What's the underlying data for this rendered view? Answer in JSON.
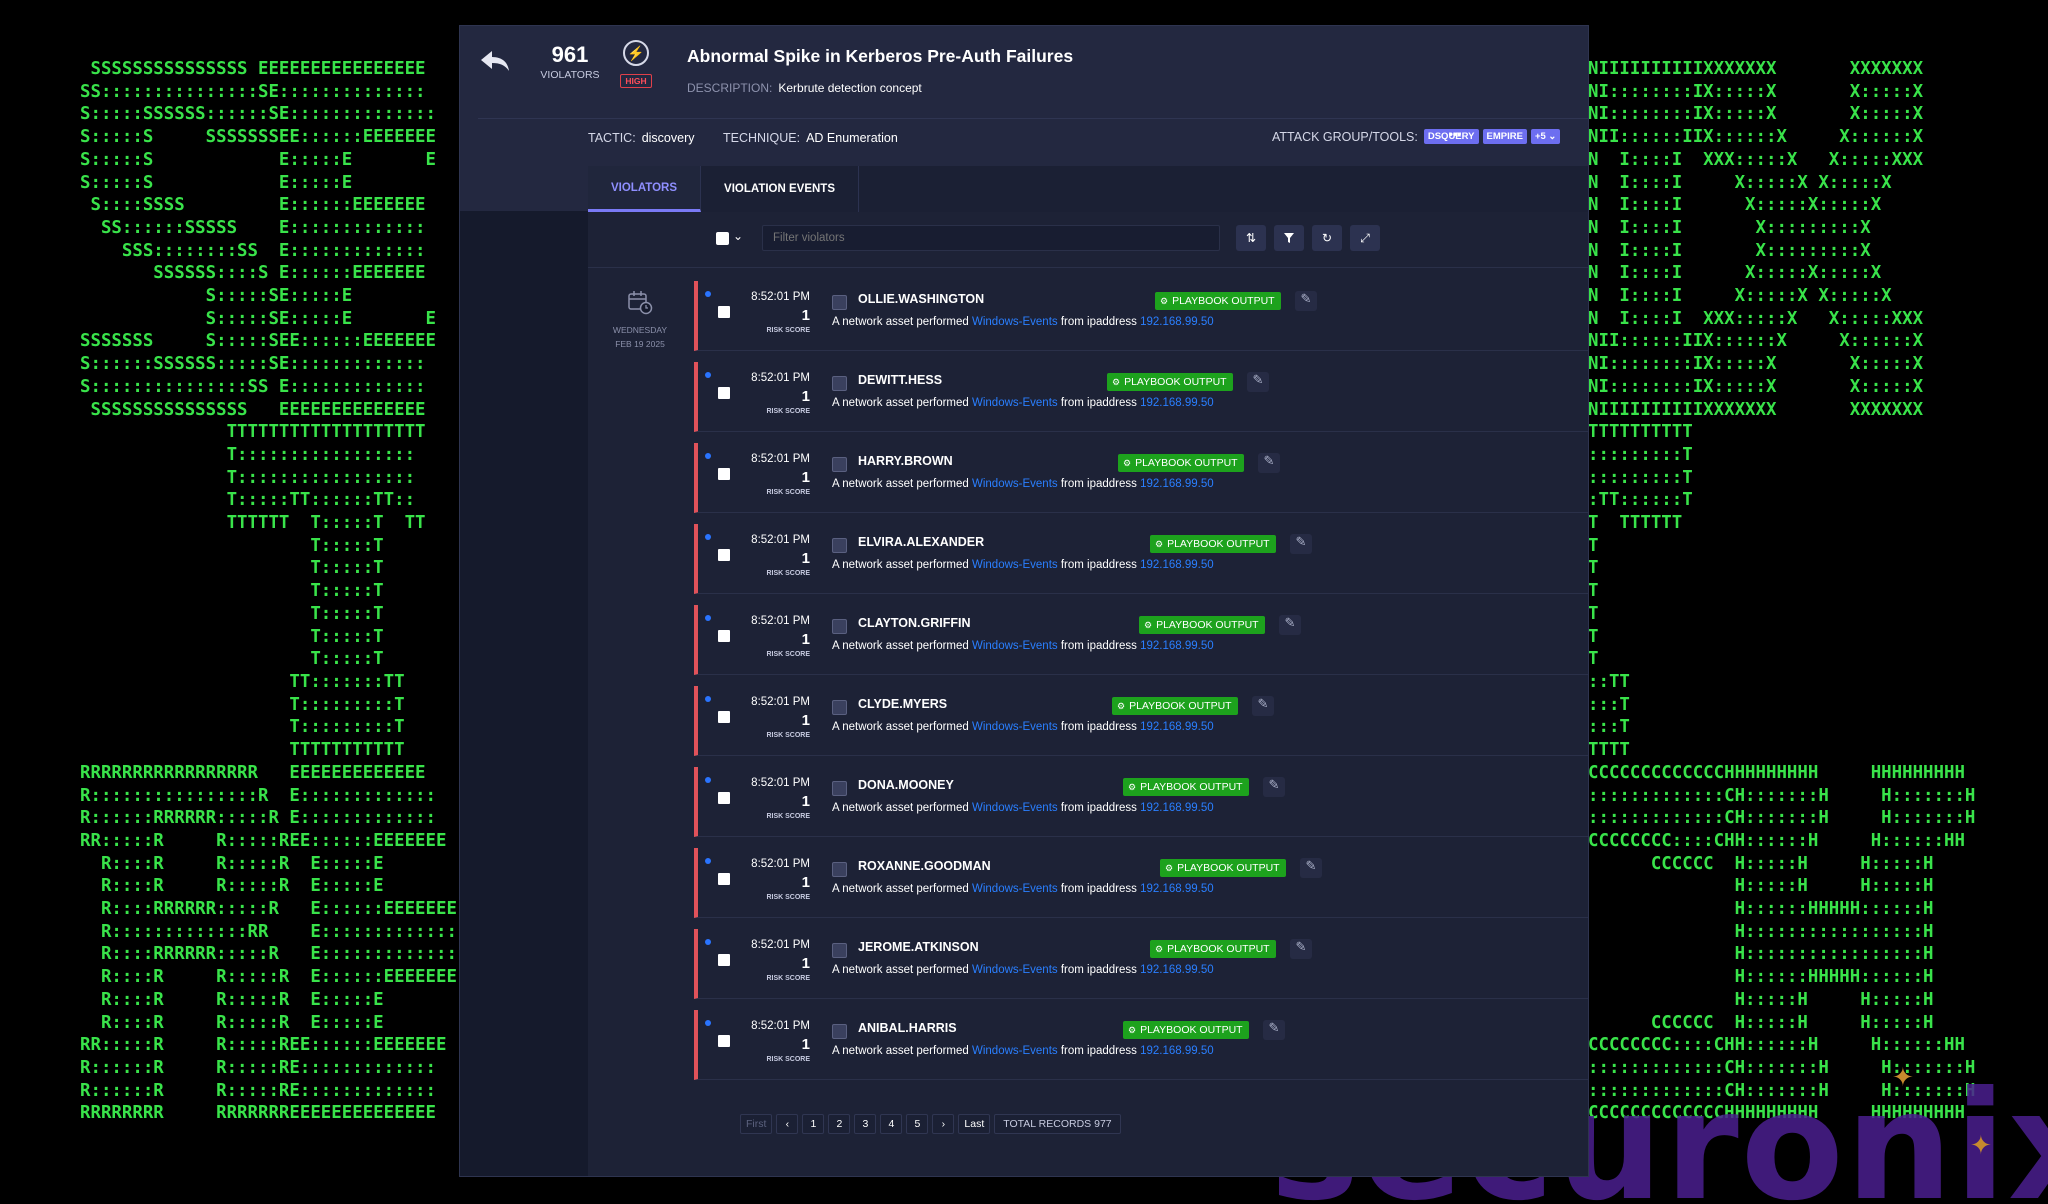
{
  "background": {
    "ascii_left": " SSSSSSSSSSSSSSS EEEEEEEEEEEEEEEE\nSS:::::::::::::::SE::::::::::::::\nS:::::SSSSSS::::::SE::::::::::::::\nS:::::S     SSSSSSSEE::::::EEEEEEE\nS:::::S            E:::::E       E\nS:::::S            E:::::E\n S::::SSSS         E::::::EEEEEEE\n  SS::::::SSSSS    E:::::::::::::\n    SSS::::::::SS  E:::::::::::::\n       SSSSSS::::S E::::::EEEEEEE\n            S:::::SE:::::E\n            S:::::SE:::::E       E\nSSSSSSS     S:::::SEE::::::EEEEEEE\nS::::::SSSSSS:::::SE:::::::::::::\nS:::::::::::::::SS E:::::::::::::\n SSSSSSSSSSSSSSS   EEEEEEEEEEEEEE\n              TTTTTTTTTTTTTTTTTTT\n              T:::::::::::::::::\n              T:::::::::::::::::\n              T:::::TT::::::TT::\n              TTTTTT  T:::::T  TT\n                      T:::::T\n                      T:::::T\n                      T:::::T\n                      T:::::T\n                      T:::::T\n                      T:::::T\n                    TT:::::::TT\n                    T:::::::::T\n                    T:::::::::T\n                    TTTTTTTTTTT\nRRRRRRRRRRRRRRRRR   EEEEEEEEEEEEE\nR::::::::::::::::R  E:::::::::::::\nR::::::RRRRRR:::::R E:::::::::::::\nRR:::::R     R:::::REE::::::EEEEEEE\n  R::::R     R:::::R  E:::::E\n  R::::R     R:::::R  E:::::E\n  R::::RRRRRR:::::R   E::::::EEEEEEE\n  R:::::::::::::RR    E:::::::::::::\n  R::::RRRRRR:::::R   E:::::::::::::\n  R::::R     R:::::R  E::::::EEEEEEE\n  R::::R     R:::::R  E:::::E\n  R::::R     R:::::R  E:::::E\nRR:::::R     R:::::REE::::::EEEEEEE\nR::::::R     R:::::RE:::::::::::::\nR::::::R     R:::::RE:::::::::::::\nRRRRRRRR     RRRRRRREEEEEEEEEEEEEE",
    "ascii_right": "NIIIIIIIIIIXXXXXXX       XXXXXXX\nNI::::::::IX:::::X       X:::::X\nNI::::::::IX:::::X       X:::::X\nNII::::::IIX::::::X     X::::::X\nN  I::::I  XXX:::::X   X:::::XXX\nN  I::::I     X:::::X X:::::X\nN  I::::I      X:::::X:::::X\nN  I::::I       X:::::::::X\nN  I::::I       X:::::::::X\nN  I::::I      X:::::X:::::X\nN  I::::I     X:::::X X:::::X\nN  I::::I  XXX:::::X   X:::::XXX\nNII::::::IIX::::::X     X::::::X\nNI::::::::IX:::::X       X:::::X\nNI::::::::IX:::::X       X:::::X\nNIIIIIIIIIIXXXXXXX       XXXXXXX\nTTTTTTTTTT\n:::::::::T\n:::::::::T\n:TT::::::T\nT  TTTTTT\nT\nT\nT\nT\nT\nT\n::TT\n:::T\n:::T\nTTTT\nCCCCCCCCCCCCCHHHHHHHHH     HHHHHHHHH\n:::::::::::::CH:::::::H     H:::::::H\n:::::::::::::CH:::::::H     H:::::::H\nCCCCCCCC::::CHH::::::H     H::::::HH\n      CCCCCC  H:::::H     H:::::H\n              H:::::H     H:::::H\n              H::::::HHHHH::::::H\n              H:::::::::::::::::H\n              H:::::::::::::::::H\n              H::::::HHHHH::::::H\n              H:::::H     H:::::H\n      CCCCCC  H:::::H     H:::::H\nCCCCCCCC::::CHH::::::H     H::::::HH\n:::::::::::::CH:::::::H     H:::::::H\n:::::::::::::CH:::::::H     H:::::::H\nCCCCCCCCCCCCCHHHHHHHHH     HHHHHHHHH",
    "brand": "securonix"
  },
  "header": {
    "violators_count": "961",
    "violators_label": "VIOLATORS",
    "severity_label": "HIGH",
    "title": "Abnormal Spike in Kerberos Pre-Auth Failures",
    "description_label": "DESCRIPTION:",
    "description": "Kerbrute detection concept",
    "tactic_label": "TACTIC:",
    "tactic": "discovery",
    "technique_label": "TECHNIQUE:",
    "technique": "AD Enumeration",
    "attack_label": "ATTACK GROUP/TOOLS:",
    "tags": [
      "DSQUERY",
      "EMPIRE",
      "+5 ⌄"
    ],
    "more": "•••"
  },
  "tabs": [
    {
      "label": "VIOLATORS",
      "active": true
    },
    {
      "label": "VIOLATION EVENTS",
      "active": false
    }
  ],
  "toolbar": {
    "filter_placeholder": "Filter violators"
  },
  "date": {
    "weekday": "WEDNESDAY",
    "date": "FEB 19 2025"
  },
  "rows": [
    {
      "time": "8:52:01 PM",
      "score": "1",
      "score_label": "RISK SCORE",
      "user": "OLLIE.WASHINGTON",
      "playbook": "PLAYBOOK OUTPUT",
      "pb_offset": 0.56,
      "desc_a": "A network asset performed",
      "link": "Windows-Events",
      "desc_b": "from ipaddress",
      "ip": "192.168.99.50"
    },
    {
      "time": "8:52:01 PM",
      "score": "1",
      "score_label": "RISK SCORE",
      "user": "DEWITT.HESS",
      "playbook": "PLAYBOOK OUTPUT",
      "pb_offset": 0.47,
      "desc_a": "A network asset performed",
      "link": "Windows-Events",
      "desc_b": "from ipaddress",
      "ip": "192.168.99.50"
    },
    {
      "time": "8:52:01 PM",
      "score": "1",
      "score_label": "RISK SCORE",
      "user": "HARRY.BROWN",
      "playbook": "PLAYBOOK OUTPUT",
      "pb_offset": 0.49,
      "desc_a": "A network asset performed",
      "link": "Windows-Events",
      "desc_b": "from ipaddress",
      "ip": "192.168.99.50"
    },
    {
      "time": "8:52:01 PM",
      "score": "1",
      "score_label": "RISK SCORE",
      "user": "ELVIRA.ALEXANDER",
      "playbook": "PLAYBOOK OUTPUT",
      "pb_offset": 0.55,
      "desc_a": "A network asset performed",
      "link": "Windows-Events",
      "desc_b": "from ipaddress",
      "ip": "192.168.99.50"
    },
    {
      "time": "8:52:01 PM",
      "score": "1",
      "score_label": "RISK SCORE",
      "user": "CLAYTON.GRIFFIN",
      "playbook": "PLAYBOOK OUTPUT",
      "pb_offset": 0.53,
      "desc_a": "A network asset performed",
      "link": "Windows-Events",
      "desc_b": "from ipaddress",
      "ip": "192.168.99.50"
    },
    {
      "time": "8:52:01 PM",
      "score": "1",
      "score_label": "RISK SCORE",
      "user": "CLYDE.MYERS",
      "playbook": "PLAYBOOK OUTPUT",
      "pb_offset": 0.48,
      "desc_a": "A network asset performed",
      "link": "Windows-Events",
      "desc_b": "from ipaddress",
      "ip": "192.168.99.50"
    },
    {
      "time": "8:52:01 PM",
      "score": "1",
      "score_label": "RISK SCORE",
      "user": "DONA.MOONEY",
      "playbook": "PLAYBOOK OUTPUT",
      "pb_offset": 0.5,
      "desc_a": "A network asset performed",
      "link": "Windows-Events",
      "desc_b": "from ipaddress",
      "ip": "192.168.99.50"
    },
    {
      "time": "8:52:01 PM",
      "score": "1",
      "score_label": "RISK SCORE",
      "user": "ROXANNE.GOODMAN",
      "playbook": "PLAYBOOK OUTPUT",
      "pb_offset": 0.57,
      "desc_a": "A network asset performed",
      "link": "Windows-Events",
      "desc_b": "from ipaddress",
      "ip": "192.168.99.50"
    },
    {
      "time": "8:52:01 PM",
      "score": "1",
      "score_label": "RISK SCORE",
      "user": "JEROME.ATKINSON",
      "playbook": "PLAYBOOK OUTPUT",
      "pb_offset": 0.55,
      "desc_a": "A network asset performed",
      "link": "Windows-Events",
      "desc_b": "from ipaddress",
      "ip": "192.168.99.50"
    },
    {
      "time": "8:52:01 PM",
      "score": "1",
      "score_label": "RISK SCORE",
      "user": "ANIBAL.HARRIS",
      "playbook": "PLAYBOOK OUTPUT",
      "pb_offset": 0.5,
      "desc_a": "A network asset performed",
      "link": "Windows-Events",
      "desc_b": "from ipaddress",
      "ip": "192.168.99.50"
    }
  ],
  "pager": {
    "first": "First",
    "prev": "‹",
    "pages": [
      "1",
      "2",
      "3",
      "4",
      "5"
    ],
    "next": "›",
    "last": "Last",
    "total": "TOTAL RECORDS 977"
  },
  "colors": {
    "accent": "#7a7af5",
    "playbook": "#1da21d",
    "row_border": "#e0525a",
    "link": "#2a7fff",
    "ascii": "#39e34a"
  }
}
